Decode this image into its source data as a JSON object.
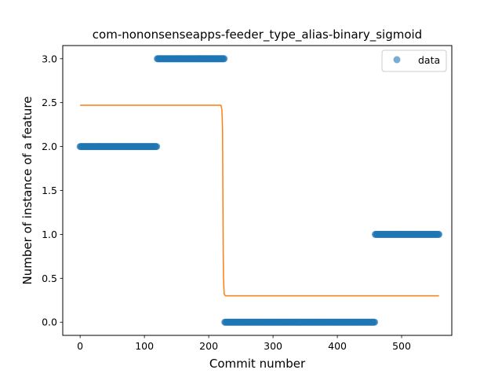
{
  "chart_data": {
    "type": "scatter",
    "title": "com-nononsenseapps-feeder_type_alias-binary_sigmoid",
    "xlabel": "Commit number",
    "ylabel": "Number of instance of a feature",
    "xlim": [
      -27,
      578
    ],
    "ylim": [
      -0.15,
      3.15
    ],
    "xticks": [
      0,
      100,
      200,
      300,
      400,
      500
    ],
    "yticks": [
      0.0,
      0.5,
      1.0,
      1.5,
      2.0,
      2.5,
      3.0
    ],
    "xtick_labels": [
      "0",
      "100",
      "200",
      "300",
      "400",
      "500"
    ],
    "ytick_labels": [
      "0.0",
      "0.5",
      "1.0",
      "1.5",
      "2.0",
      "2.5",
      "3.0"
    ],
    "legend": {
      "position": "top-right",
      "entries": [
        "data"
      ]
    },
    "grid": false,
    "series": [
      {
        "name": "data",
        "kind": "scatter",
        "color": "#1f77b4",
        "segments": [
          {
            "x_start": 0,
            "x_end": 119,
            "y": 2.0
          },
          {
            "x_start": 120,
            "x_end": 224,
            "y": 3.0
          },
          {
            "x_start": 225,
            "x_end": 458,
            "y": 0.0
          },
          {
            "x_start": 459,
            "x_end": 558,
            "y": 1.0
          }
        ]
      },
      {
        "kind": "line",
        "color": "#ff7f0e",
        "points": [
          [
            0,
            2.47
          ],
          [
            219,
            2.47
          ],
          [
            220.5,
            2.42
          ],
          [
            221.5,
            2.2
          ],
          [
            222,
            1.5
          ],
          [
            222.5,
            0.8
          ],
          [
            223,
            0.5
          ],
          [
            224,
            0.32
          ],
          [
            226,
            0.3
          ],
          [
            558,
            0.3
          ]
        ]
      }
    ]
  }
}
